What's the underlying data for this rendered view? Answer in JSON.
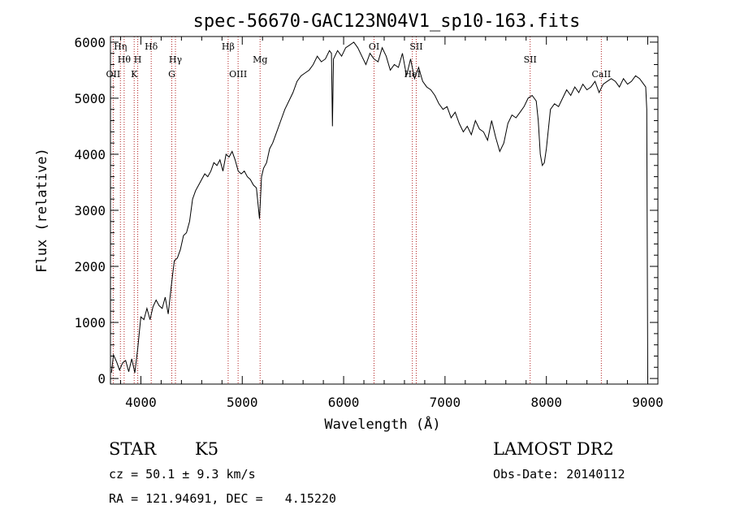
{
  "chart_data": {
    "type": "line",
    "title": "spec-56670-GAC123N04V1_sp10-163.fits",
    "xlabel": "Wavelength (Å)",
    "ylabel": "Flux (relative)",
    "xlim": [
      3700,
      9100
    ],
    "ylim": [
      -100,
      6100
    ],
    "x_ticks": [
      4000,
      5000,
      6000,
      7000,
      8000,
      9000
    ],
    "y_ticks": [
      0,
      1000,
      2000,
      3000,
      4000,
      5000,
      6000
    ],
    "grid": false,
    "line_color": "#000000",
    "marker_color": "#b22222",
    "series": [
      {
        "x": [
          3710,
          3730,
          3760,
          3790,
          3820,
          3850,
          3880,
          3910,
          3940,
          3970,
          4000,
          4030,
          4060,
          4090,
          4120,
          4150,
          4180,
          4210,
          4240,
          4270,
          4300,
          4330,
          4360,
          4390,
          4420,
          4450,
          4480,
          4510,
          4540,
          4570,
          4600,
          4630,
          4660,
          4690,
          4720,
          4750,
          4780,
          4810,
          4840,
          4870,
          4900,
          4930,
          4960,
          4990,
          5020,
          5050,
          5080,
          5110,
          5140,
          5170,
          5190,
          5210,
          5240,
          5270,
          5300,
          5340,
          5380,
          5420,
          5460,
          5500,
          5540,
          5580,
          5620,
          5660,
          5700,
          5740,
          5780,
          5820,
          5860,
          5880,
          5890,
          5900,
          5940,
          5980,
          6020,
          6060,
          6100,
          6140,
          6180,
          6220,
          6260,
          6300,
          6340,
          6380,
          6420,
          6460,
          6500,
          6540,
          6580,
          6620,
          6660,
          6700,
          6740,
          6780,
          6820,
          6860,
          6900,
          6940,
          6980,
          7020,
          7060,
          7100,
          7140,
          7180,
          7220,
          7260,
          7300,
          7340,
          7380,
          7420,
          7460,
          7500,
          7540,
          7580,
          7620,
          7660,
          7700,
          7740,
          7780,
          7820,
          7860,
          7900,
          7920,
          7940,
          7960,
          7980,
          8000,
          8040,
          8080,
          8120,
          8160,
          8200,
          8240,
          8280,
          8320,
          8360,
          8400,
          8440,
          8480,
          8520,
          8560,
          8600,
          8640,
          8680,
          8720,
          8760,
          8800,
          8840,
          8880,
          8920,
          8960,
          8980,
          8990,
          9000
        ],
        "y": [
          100,
          420,
          300,
          150,
          280,
          320,
          120,
          350,
          100,
          550,
          1100,
          1050,
          1250,
          1050,
          1280,
          1400,
          1300,
          1250,
          1450,
          1150,
          1650,
          2100,
          2150,
          2300,
          2550,
          2600,
          2800,
          3200,
          3350,
          3450,
          3550,
          3650,
          3600,
          3700,
          3850,
          3800,
          3900,
          3700,
          4000,
          3950,
          4050,
          3900,
          3700,
          3650,
          3700,
          3600,
          3550,
          3450,
          3400,
          2850,
          3600,
          3750,
          3850,
          4100,
          4200,
          4400,
          4600,
          4800,
          4950,
          5100,
          5300,
          5400,
          5450,
          5500,
          5600,
          5750,
          5650,
          5700,
          5850,
          5800,
          4500,
          5700,
          5850,
          5750,
          5900,
          5950,
          6000,
          5900,
          5750,
          5600,
          5800,
          5700,
          5650,
          5900,
          5750,
          5500,
          5600,
          5550,
          5800,
          5400,
          5700,
          5350,
          5550,
          5300,
          5200,
          5150,
          5050,
          4900,
          4800,
          4850,
          4650,
          4750,
          4550,
          4400,
          4500,
          4350,
          4600,
          4450,
          4400,
          4250,
          4600,
          4300,
          4050,
          4200,
          4550,
          4700,
          4650,
          4750,
          4850,
          5000,
          5050,
          4950,
          4600,
          4000,
          3800,
          3850,
          4100,
          4800,
          4900,
          4850,
          5000,
          5150,
          5050,
          5200,
          5100,
          5250,
          5150,
          5200,
          5300,
          5100,
          5250,
          5300,
          5350,
          5300,
          5200,
          5350,
          5250,
          5300,
          5400,
          5350,
          5250,
          5200,
          4800,
          0
        ]
      }
    ],
    "lines": [
      {
        "wl": 3727,
        "label": "OII",
        "row": 3
      },
      {
        "wl": 3798,
        "label": "Hη",
        "row": 1
      },
      {
        "wl": 3835,
        "label": "Hθ",
        "row": 2
      },
      {
        "wl": 3934,
        "label": "K",
        "row": 3
      },
      {
        "wl": 3969,
        "label": "H",
        "row": 2
      },
      {
        "wl": 4102,
        "label": "Hδ",
        "row": 1
      },
      {
        "wl": 4305,
        "label": "G",
        "row": 3
      },
      {
        "wl": 4341,
        "label": "Hγ",
        "row": 2
      },
      {
        "wl": 4861,
        "label": "Hβ",
        "row": 1
      },
      {
        "wl": 4959,
        "label": "OIII",
        "row": 3
      },
      {
        "wl": 5176,
        "label": "Mg",
        "row": 2
      },
      {
        "wl": 6300,
        "label": "OI",
        "row": 1
      },
      {
        "wl": 6678,
        "label": "HeI",
        "row": 3
      },
      {
        "wl": 6716,
        "label": "SII",
        "row": 1
      },
      {
        "wl": 7840,
        "label": "SII",
        "row": 2
      },
      {
        "wl": 8542,
        "label": "CaII",
        "row": 3
      }
    ]
  },
  "info": {
    "object_class": "STAR",
    "subclass": "K5",
    "survey": "LAMOST DR2",
    "redshift": "cz = 50.1 ± 9.3 km/s",
    "obs_date": "Obs-Date: 20140112",
    "coords": "RA = 121.94691, DEC =   4.15220"
  }
}
